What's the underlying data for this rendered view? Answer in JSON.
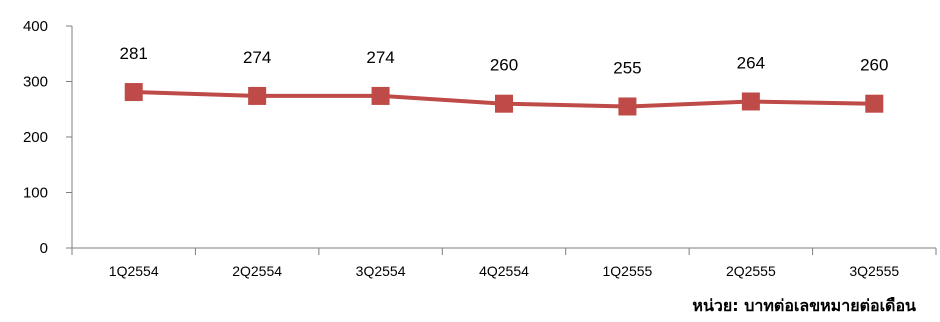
{
  "chart_data": {
    "type": "line",
    "title": "",
    "xlabel": "",
    "ylabel": "",
    "categories": [
      "1Q2554",
      "2Q2554",
      "3Q2554",
      "4Q2554",
      "1Q2555",
      "2Q2555",
      "3Q2555"
    ],
    "series": [
      {
        "values": [
          281,
          274,
          274,
          260,
          255,
          264,
          260
        ]
      }
    ],
    "ylim": [
      0,
      400
    ],
    "yticks": [
      "0",
      "100",
      "200",
      "300",
      "400"
    ],
    "data_labels": [
      "281",
      "274",
      "274",
      "260",
      "255",
      "264",
      "260"
    ],
    "grid": false,
    "legend": "none",
    "marker": "square"
  },
  "colors": {
    "series": "#BE4B48",
    "axis": "#7F7F7F",
    "text": "#000000"
  },
  "unit_note": "หน่วย: บาทต่อเลขหมายต่อเดือน"
}
